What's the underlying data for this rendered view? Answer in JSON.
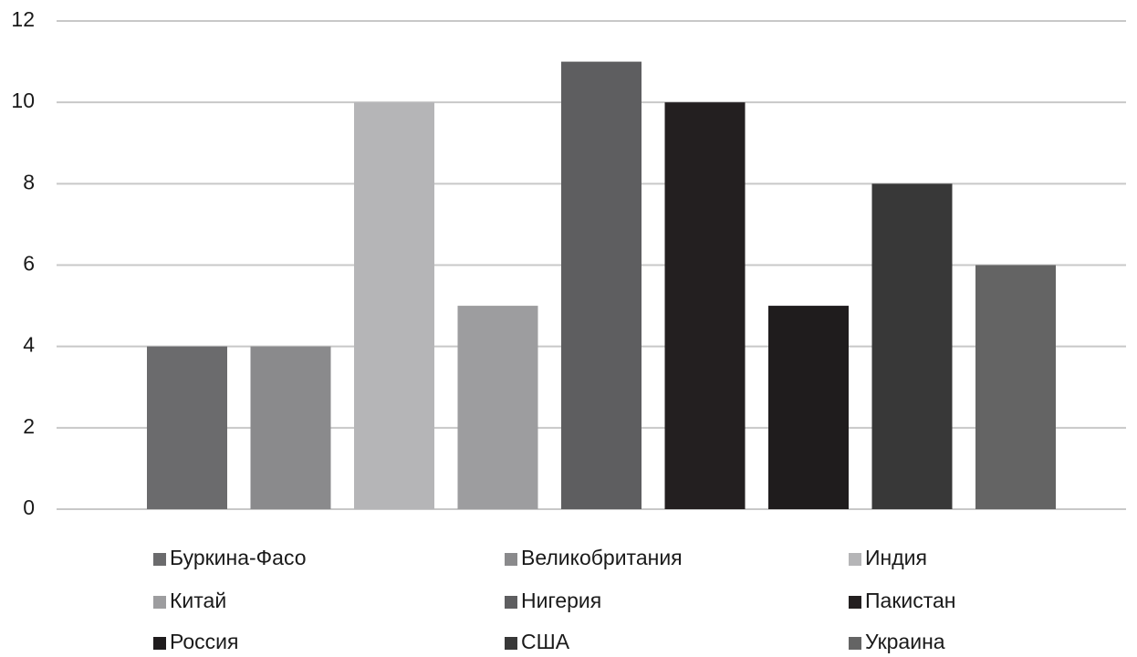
{
  "chart_data": {
    "type": "bar",
    "categories": [
      null
    ],
    "series": [
      {
        "name": "Буркина-Фасо",
        "color": "#6b6b6d",
        "values": [
          4
        ]
      },
      {
        "name": "Великобритания",
        "color": "#8a8a8c",
        "values": [
          4
        ]
      },
      {
        "name": "Индия",
        "color": "#b5b5b7",
        "values": [
          10
        ]
      },
      {
        "name": "Китай",
        "color": "#9d9d9f",
        "values": [
          5
        ]
      },
      {
        "name": "Нигерия",
        "color": "#5e5e60",
        "values": [
          11
        ]
      },
      {
        "name": "Пакистан",
        "color": "#231f20",
        "values": [
          10
        ]
      },
      {
        "name": "Россия",
        "color": "#1f1c1d",
        "values": [
          5
        ]
      },
      {
        "name": "США",
        "color": "#383838",
        "values": [
          8
        ]
      },
      {
        "name": "Украина",
        "color": "#646464",
        "values": [
          6
        ]
      }
    ],
    "ylim": [
      0,
      12
    ],
    "yticks": [
      0,
      2,
      4,
      6,
      8,
      10,
      12
    ],
    "grid": true,
    "legend": "bottom"
  }
}
